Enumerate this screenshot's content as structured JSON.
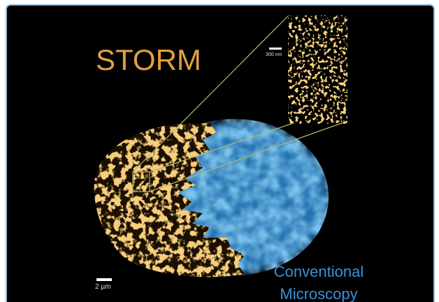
{
  "labels": {
    "title": "STORM",
    "inset_scale": "300 nm",
    "scale": "2 µm",
    "conventional_line1": "Conventional",
    "conventional_line2": "Microscopy"
  }
}
